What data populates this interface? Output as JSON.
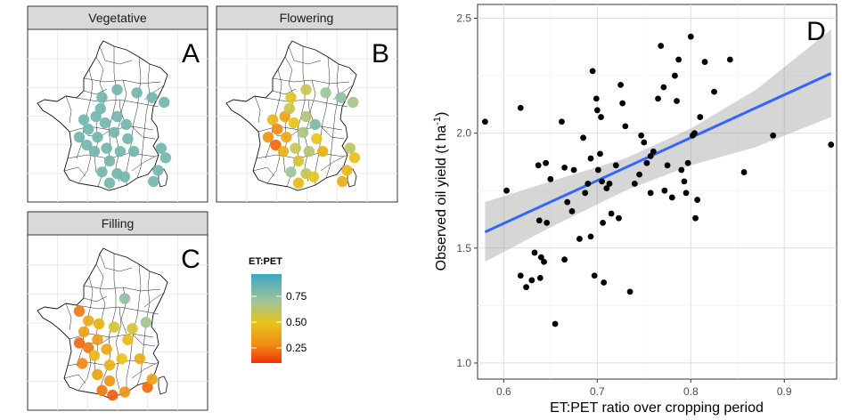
{
  "panels": {
    "A": {
      "strip": "Vegetative",
      "letter": "A"
    },
    "B": {
      "strip": "Flowering",
      "letter": "B"
    },
    "C": {
      "strip": "Filling",
      "letter": "C"
    }
  },
  "legend": {
    "title": "ET:PET",
    "breaks": [
      "0.75",
      "0.50",
      "0.25"
    ],
    "colors": [
      "#3ea6c4",
      "#9ec39a",
      "#e6c31a",
      "#f08a14",
      "#f0320a"
    ]
  },
  "chart_data": [
    {
      "type": "scatter",
      "panel": "D",
      "title": "D",
      "xlabel": "ET:PET ratio over cropping period",
      "ylabel": "Observed oil yield (t ha",
      "ylabel_sup": "-1",
      "ylabel_close": ")",
      "xlim": [
        0.572,
        0.956
      ],
      "ylim": [
        0.93,
        2.56
      ],
      "xticks": [
        "0.6",
        "0.7",
        "0.8",
        "0.9"
      ],
      "xtick_values": [
        0.6,
        0.7,
        0.8,
        0.9
      ],
      "yticks": [
        "1.0",
        "1.5",
        "2.0",
        "2.5"
      ],
      "ytick_values": [
        1.0,
        1.5,
        2.0,
        2.5
      ],
      "grid": true,
      "points": [
        [
          0.58,
          2.05
        ],
        [
          0.603,
          1.75
        ],
        [
          0.618,
          2.11
        ],
        [
          0.618,
          1.38
        ],
        [
          0.624,
          1.33
        ],
        [
          0.63,
          1.36
        ],
        [
          0.633,
          1.48
        ],
        [
          0.637,
          1.86
        ],
        [
          0.638,
          1.62
        ],
        [
          0.639,
          1.37
        ],
        [
          0.64,
          1.46
        ],
        [
          0.643,
          1.44
        ],
        [
          0.645,
          1.87
        ],
        [
          0.646,
          1.61
        ],
        [
          0.65,
          1.8
        ],
        [
          0.655,
          1.17
        ],
        [
          0.662,
          2.05
        ],
        [
          0.665,
          1.45
        ],
        [
          0.665,
          1.85
        ],
        [
          0.668,
          1.7
        ],
        [
          0.673,
          1.66
        ],
        [
          0.675,
          1.84
        ],
        [
          0.681,
          1.54
        ],
        [
          0.685,
          1.98
        ],
        [
          0.687,
          1.74
        ],
        [
          0.69,
          1.78
        ],
        [
          0.693,
          1.89
        ],
        [
          0.693,
          1.55
        ],
        [
          0.695,
          2.27
        ],
        [
          0.697,
          1.38
        ],
        [
          0.699,
          2.15
        ],
        [
          0.7,
          2.1
        ],
        [
          0.701,
          1.84
        ],
        [
          0.703,
          1.91
        ],
        [
          0.704,
          2.07
        ],
        [
          0.705,
          1.79
        ],
        [
          0.706,
          1.61
        ],
        [
          0.707,
          1.35
        ],
        [
          0.71,
          1.76
        ],
        [
          0.713,
          1.78
        ],
        [
          0.715,
          1.65
        ],
        [
          0.72,
          1.86
        ],
        [
          0.723,
          1.63
        ],
        [
          0.725,
          2.21
        ],
        [
          0.727,
          2.13
        ],
        [
          0.73,
          2.03
        ],
        [
          0.735,
          1.31
        ],
        [
          0.74,
          1.78
        ],
        [
          0.745,
          1.82
        ],
        [
          0.747,
          1.99
        ],
        [
          0.75,
          1.96
        ],
        [
          0.753,
          1.87
        ],
        [
          0.757,
          1.74
        ],
        [
          0.76,
          1.92
        ],
        [
          0.765,
          2.15
        ],
        [
          0.768,
          2.38
        ],
        [
          0.772,
          1.75
        ],
        [
          0.775,
          1.86
        ],
        [
          0.78,
          1.72
        ],
        [
          0.783,
          2.25
        ],
        [
          0.785,
          2.14
        ],
        [
          0.787,
          2.32
        ],
        [
          0.79,
          1.84
        ],
        [
          0.793,
          1.79
        ],
        [
          0.795,
          1.74
        ],
        [
          0.797,
          1.87
        ],
        [
          0.8,
          2.42
        ],
        [
          0.802,
          1.99
        ],
        [
          0.804,
          2.0
        ],
        [
          0.805,
          1.63
        ],
        [
          0.807,
          1.71
        ],
        [
          0.81,
          2.07
        ],
        [
          0.815,
          2.31
        ],
        [
          0.825,
          2.18
        ],
        [
          0.842,
          2.32
        ],
        [
          0.857,
          1.83
        ],
        [
          0.888,
          1.99
        ],
        [
          0.95,
          1.95
        ],
        [
          0.771,
          2.2
        ],
        [
          0.757,
          1.9
        ]
      ],
      "fit": {
        "x": [
          0.58,
          0.95
        ],
        "y": [
          1.57,
          2.26
        ]
      },
      "band": {
        "x": [
          0.58,
          0.65,
          0.73,
          0.8,
          0.87,
          0.95
        ],
        "lo": [
          1.44,
          1.59,
          1.75,
          1.86,
          1.94,
          2.07
        ],
        "hi": [
          1.7,
          1.79,
          1.89,
          2.02,
          2.19,
          2.45
        ]
      },
      "fit_color": "#3366ff",
      "band_color": "#999999"
    }
  ],
  "map_data": {
    "A": {
      "values": [
        [
          0.45,
          0.38,
          0.8
        ],
        [
          0.55,
          0.33,
          0.8
        ],
        [
          0.68,
          0.35,
          0.8
        ],
        [
          0.78,
          0.38,
          0.8
        ],
        [
          0.86,
          0.41,
          0.8
        ],
        [
          0.33,
          0.52,
          0.8
        ],
        [
          0.41,
          0.5,
          0.8
        ],
        [
          0.47,
          0.54,
          0.8
        ],
        [
          0.53,
          0.6,
          0.8
        ],
        [
          0.61,
          0.55,
          0.8
        ],
        [
          0.3,
          0.63,
          0.8
        ],
        [
          0.35,
          0.68,
          0.8
        ],
        [
          0.42,
          0.63,
          0.8
        ],
        [
          0.4,
          0.72,
          0.8
        ],
        [
          0.48,
          0.7,
          0.8
        ],
        [
          0.5,
          0.78,
          0.8
        ],
        [
          0.57,
          0.72,
          0.8
        ],
        [
          0.62,
          0.64,
          0.8
        ],
        [
          0.66,
          0.72,
          0.8
        ],
        [
          0.84,
          0.7,
          0.8
        ],
        [
          0.87,
          0.76,
          0.8
        ],
        [
          0.82,
          0.84,
          0.8
        ],
        [
          0.45,
          0.85,
          0.8
        ],
        [
          0.55,
          0.86,
          0.8
        ],
        [
          0.5,
          0.92,
          0.8
        ],
        [
          0.6,
          0.88,
          0.8
        ],
        [
          0.79,
          0.91,
          0.8
        ],
        [
          0.36,
          0.58,
          0.8
        ],
        [
          0.44,
          0.45,
          0.8
        ],
        [
          0.55,
          0.5,
          0.8
        ]
      ]
    },
    "B": {
      "values": [
        [
          0.45,
          0.38,
          0.52
        ],
        [
          0.55,
          0.33,
          0.6
        ],
        [
          0.68,
          0.35,
          0.72
        ],
        [
          0.78,
          0.38,
          0.75
        ],
        [
          0.86,
          0.41,
          0.7
        ],
        [
          0.33,
          0.52,
          0.45
        ],
        [
          0.41,
          0.5,
          0.35
        ],
        [
          0.47,
          0.54,
          0.5
        ],
        [
          0.53,
          0.6,
          0.68
        ],
        [
          0.61,
          0.55,
          0.78
        ],
        [
          0.3,
          0.63,
          0.3
        ],
        [
          0.35,
          0.68,
          0.15
        ],
        [
          0.42,
          0.63,
          0.38
        ],
        [
          0.4,
          0.72,
          0.42
        ],
        [
          0.48,
          0.7,
          0.6
        ],
        [
          0.5,
          0.78,
          0.55
        ],
        [
          0.57,
          0.72,
          0.65
        ],
        [
          0.62,
          0.64,
          0.5
        ],
        [
          0.66,
          0.72,
          0.42
        ],
        [
          0.84,
          0.7,
          0.62
        ],
        [
          0.87,
          0.76,
          0.48
        ],
        [
          0.82,
          0.84,
          0.45
        ],
        [
          0.45,
          0.85,
          0.72
        ],
        [
          0.55,
          0.86,
          0.6
        ],
        [
          0.5,
          0.92,
          0.45
        ],
        [
          0.6,
          0.88,
          0.5
        ],
        [
          0.79,
          0.91,
          0.4
        ],
        [
          0.36,
          0.58,
          0.25
        ],
        [
          0.44,
          0.45,
          0.58
        ],
        [
          0.55,
          0.5,
          0.66
        ]
      ]
    },
    "C": {
      "values": [
        [
          0.6,
          0.34,
          0.75
        ],
        [
          0.3,
          0.42,
          0.2
        ],
        [
          0.43,
          0.5,
          0.42
        ],
        [
          0.53,
          0.52,
          0.55
        ],
        [
          0.62,
          0.6,
          0.45
        ],
        [
          0.33,
          0.55,
          0.35
        ],
        [
          0.3,
          0.62,
          0.15
        ],
        [
          0.36,
          0.65,
          0.2
        ],
        [
          0.42,
          0.6,
          0.32
        ],
        [
          0.4,
          0.7,
          0.45
        ],
        [
          0.48,
          0.66,
          0.38
        ],
        [
          0.5,
          0.76,
          0.42
        ],
        [
          0.58,
          0.72,
          0.5
        ],
        [
          0.7,
          0.72,
          0.4
        ],
        [
          0.32,
          0.75,
          0.25
        ],
        [
          0.42,
          0.82,
          0.35
        ],
        [
          0.5,
          0.86,
          0.3
        ],
        [
          0.45,
          0.92,
          0.2
        ],
        [
          0.52,
          0.95,
          0.12
        ],
        [
          0.6,
          0.93,
          0.3
        ],
        [
          0.75,
          0.9,
          0.15
        ],
        [
          0.78,
          0.85,
          0.35
        ],
        [
          0.65,
          0.53,
          0.55
        ],
        [
          0.74,
          0.49,
          0.7
        ],
        [
          0.36,
          0.48,
          0.4
        ]
      ]
    }
  }
}
